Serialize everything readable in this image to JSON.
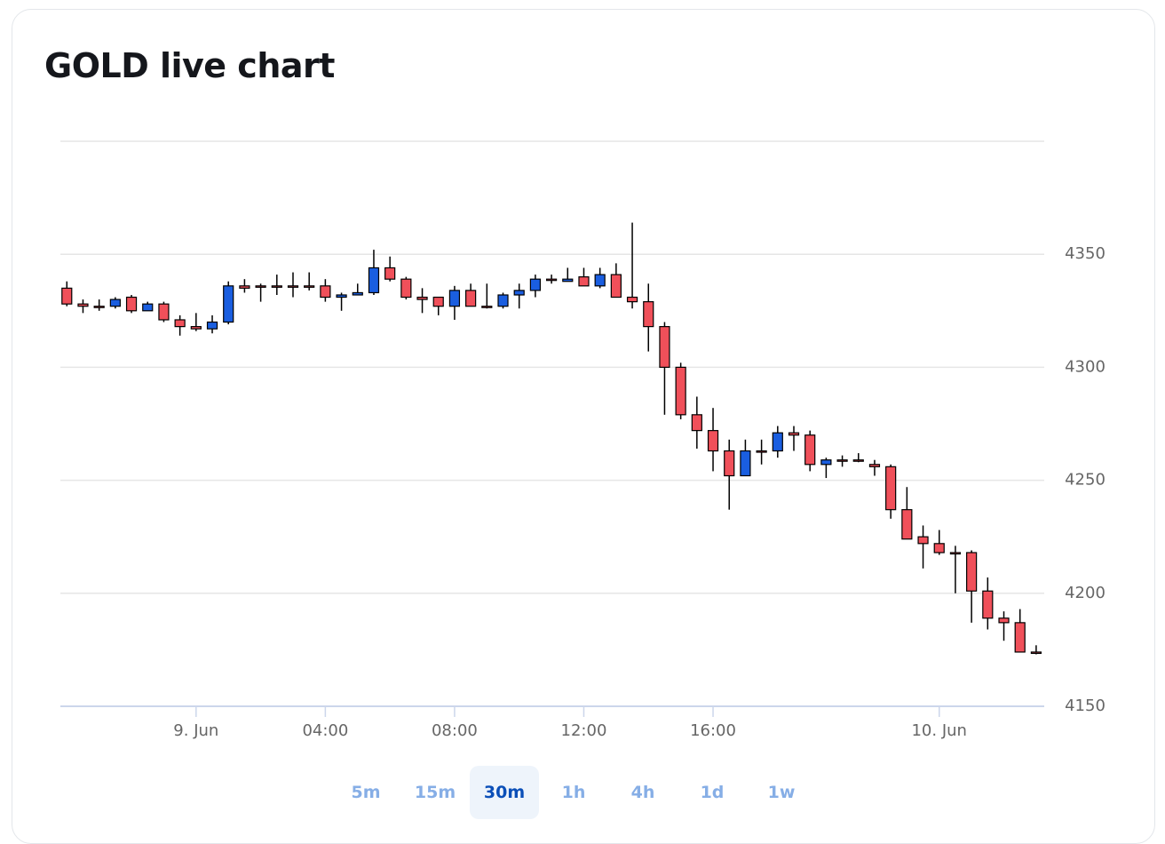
{
  "title": "GOLD live chart",
  "chart_data": {
    "type": "candlestick",
    "x": [
      0,
      1,
      2,
      3,
      4,
      5,
      6,
      7,
      8,
      9,
      10,
      11,
      12,
      13,
      14,
      15,
      16,
      17,
      18,
      19,
      20,
      21,
      22,
      23,
      24,
      25,
      26,
      27,
      28,
      29,
      30,
      31,
      32,
      33,
      34,
      35,
      36,
      37,
      38,
      39,
      40,
      41,
      42,
      43,
      44,
      45,
      46,
      47,
      48,
      49,
      50,
      51,
      52,
      53,
      54,
      55,
      56,
      57,
      58,
      59,
      60
    ],
    "open": [
      4335,
      4328,
      4327,
      4327,
      4331,
      4325,
      4328,
      4321,
      4318,
      4317,
      4320,
      4336,
      4336,
      4336,
      4336,
      4336,
      4336,
      4331,
      4332,
      4333,
      4344,
      4339,
      4331,
      4331,
      4327,
      4334,
      4327,
      4327,
      4332,
      4334,
      4339,
      4338,
      4340,
      4336,
      4341,
      4331,
      4329,
      4318,
      4300,
      4279,
      4272,
      4263,
      4252,
      4263,
      4263,
      4271,
      4270,
      4257,
      4259,
      4259,
      4257,
      4256,
      4237,
      4225,
      4222,
      4218,
      4218,
      4201,
      4189,
      4187,
      4174
    ],
    "high": [
      4338,
      4330,
      4330,
      4331,
      4332,
      4329,
      4329,
      4323,
      4324,
      4323,
      4338,
      4339,
      4337,
      4341,
      4342,
      4342,
      4339,
      4333,
      4337,
      4352,
      4349,
      4340,
      4335,
      4331,
      4336,
      4337,
      4337,
      4333,
      4337,
      4341,
      4341,
      4344,
      4344,
      4344,
      4346,
      4364,
      4337,
      4320,
      4302,
      4287,
      4282,
      4268,
      4268,
      4268,
      4274,
      4274,
      4272,
      4260,
      4261,
      4262,
      4259,
      4257,
      4247,
      4230,
      4228,
      4221,
      4219,
      4207,
      4192,
      4193,
      4177
    ],
    "low": [
      4327,
      4324,
      4325,
      4326,
      4324,
      4325,
      4320,
      4314,
      4316,
      4315,
      4319,
      4333,
      4329,
      4332,
      4331,
      4334,
      4329,
      4325,
      4332,
      4332,
      4338,
      4330,
      4324,
      4323,
      4321,
      4327,
      4326,
      4326,
      4326,
      4331,
      4337,
      4338,
      4336,
      4335,
      4331,
      4326,
      4307,
      4279,
      4277,
      4264,
      4254,
      4237,
      4252,
      4257,
      4260,
      4263,
      4254,
      4251,
      4256,
      4258,
      4252,
      4233,
      4224,
      4211,
      4217,
      4200,
      4187,
      4184,
      4179,
      4174,
      4173
    ],
    "close": [
      4328,
      4327,
      4327,
      4330,
      4325,
      4328,
      4321,
      4318,
      4317,
      4320,
      4336,
      4335,
      4336,
      4336,
      4336,
      4336,
      4331,
      4332,
      4333,
      4344,
      4339,
      4331,
      4330,
      4327,
      4334,
      4327,
      4327,
      4332,
      4334,
      4339,
      4339,
      4339,
      4336,
      4341,
      4331,
      4329,
      4318,
      4300,
      4279,
      4272,
      4263,
      4252,
      4263,
      4263,
      4271,
      4270,
      4257,
      4259,
      4259,
      4259,
      4256,
      4237,
      4224,
      4222,
      4218,
      4218,
      4201,
      4189,
      4187,
      4174,
      4174
    ],
    "up_color": "#1a5ee0",
    "down_color": "#f0505a",
    "xlim": [
      -0.4,
      60.5
    ],
    "xticks": [
      {
        "value": 8,
        "label": "9. Jun"
      },
      {
        "value": 16,
        "label": "04:00"
      },
      {
        "value": 24,
        "label": "08:00"
      },
      {
        "value": 32,
        "label": "12:00"
      },
      {
        "value": 40,
        "label": "16:00"
      },
      {
        "value": 54,
        "label": "10. Jun"
      }
    ],
    "ylim": [
      4150,
      4400
    ],
    "yticks": [
      4150,
      4200,
      4250,
      4300,
      4350
    ],
    "grid": true
  },
  "timeframes": [
    "5m",
    "15m",
    "30m",
    "1h",
    "4h",
    "1d",
    "1w"
  ],
  "active_timeframe": 2
}
